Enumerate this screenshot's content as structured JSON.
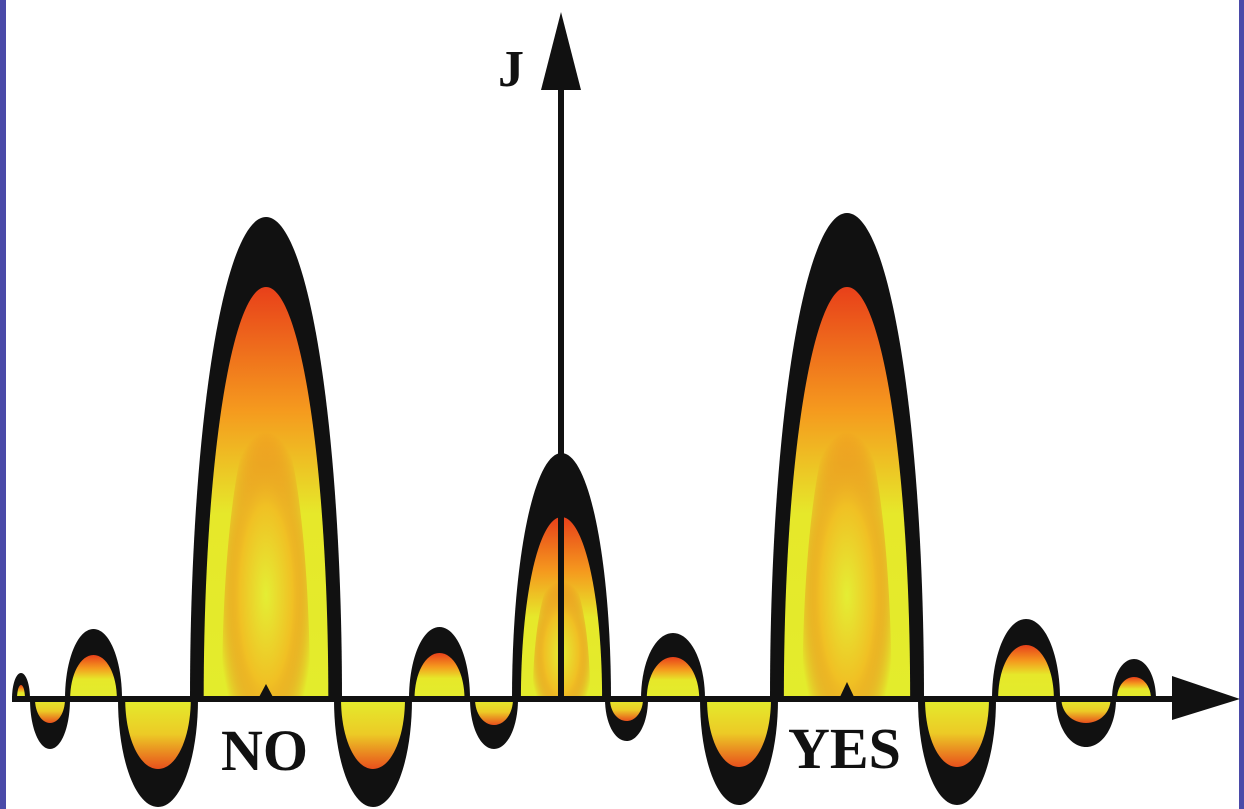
{
  "diagram": {
    "axis_label": "J",
    "markers": {
      "left": "NO",
      "right": "YES"
    },
    "colors": {
      "outline": "#111111",
      "hot": "#e8401a",
      "mid": "#f59a1e",
      "core": "#dde82a",
      "frame": "#4a4aa8"
    }
  }
}
